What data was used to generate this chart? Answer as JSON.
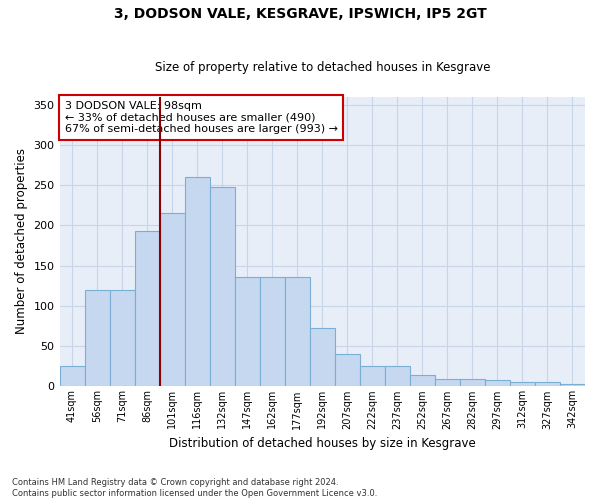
{
  "title": "3, DODSON VALE, KESGRAVE, IPSWICH, IP5 2GT",
  "subtitle": "Size of property relative to detached houses in Kesgrave",
  "xlabel": "Distribution of detached houses by size in Kesgrave",
  "ylabel": "Number of detached properties",
  "categories": [
    "41sqm",
    "56sqm",
    "71sqm",
    "86sqm",
    "101sqm",
    "116sqm",
    "132sqm",
    "147sqm",
    "162sqm",
    "177sqm",
    "192sqm",
    "207sqm",
    "222sqm",
    "237sqm",
    "252sqm",
    "267sqm",
    "282sqm",
    "297sqm",
    "312sqm",
    "327sqm",
    "342sqm"
  ],
  "values": [
    25,
    120,
    120,
    193,
    215,
    260,
    247,
    136,
    136,
    136,
    73,
    40,
    25,
    25,
    14,
    9,
    9,
    8,
    5,
    5,
    3
  ],
  "bar_color": "#c5d8f0",
  "bar_edge_color": "#7aafd4",
  "vline_color": "#8b0000",
  "annotation_text": "3 DODSON VALE: 98sqm\n← 33% of detached houses are smaller (490)\n67% of semi-detached houses are larger (993) →",
  "annotation_box_color": "#ffffff",
  "annotation_box_edge": "#cc0000",
  "ylim": [
    0,
    360
  ],
  "yticks": [
    0,
    50,
    100,
    150,
    200,
    250,
    300,
    350
  ],
  "background_color": "#ffffff",
  "plot_bg_color": "#e8eef8",
  "grid_color": "#c8d4e8",
  "footnote": "Contains HM Land Registry data © Crown copyright and database right 2024.\nContains public sector information licensed under the Open Government Licence v3.0."
}
